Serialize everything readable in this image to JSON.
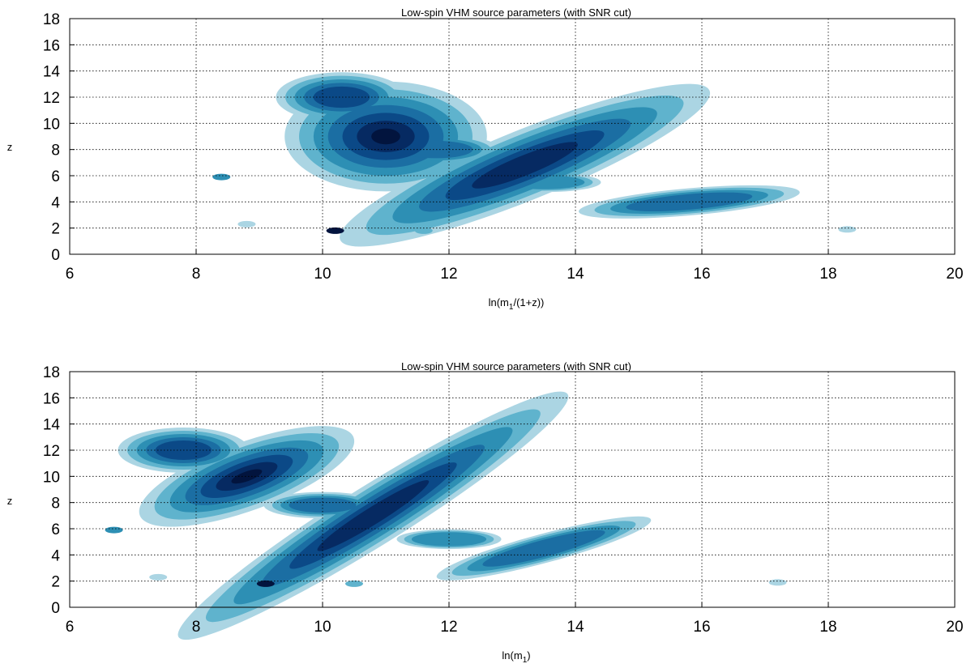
{
  "colors": {
    "levels": [
      "#abd5e3",
      "#5fb3cd",
      "#2d8fb4",
      "#1b6ea3",
      "#0b4987",
      "#062a62",
      "#02143e"
    ],
    "grid": "#000000",
    "background": "#ffffff"
  },
  "chart_data": [
    {
      "type": "heatmap",
      "title": "Low-spin VHM source parameters (with SNR cut)",
      "xlabel": "ln(m1/(1+z))",
      "ylabel": "z",
      "xlim": [
        6,
        20
      ],
      "ylim": [
        0,
        18
      ],
      "xticks": [
        "6",
        "8",
        "10",
        "12",
        "14",
        "16",
        "18",
        "20"
      ],
      "yticks": [
        "0",
        "2",
        "4",
        "6",
        "8",
        "10",
        "12",
        "14",
        "16",
        "18"
      ],
      "grid": true,
      "density_levels": 7,
      "blobs": [
        {
          "x": 13.2,
          "y": 6.8,
          "sx": 3.3,
          "sy": 2.8,
          "w": 0.9,
          "rot": -22
        },
        {
          "x": 11.0,
          "y": 9.0,
          "sx": 1.6,
          "sy": 4.2,
          "w": 1.0,
          "rot": 0
        },
        {
          "x": 10.3,
          "y": 12.0,
          "sx": 1.2,
          "sy": 2.2,
          "w": 0.7,
          "rot": 0
        },
        {
          "x": 15.8,
          "y": 4.0,
          "sx": 2.2,
          "sy": 1.3,
          "w": 0.55,
          "rot": -5
        },
        {
          "x": 11.8,
          "y": 8.0,
          "sx": 1.3,
          "sy": 1.5,
          "w": 0.5,
          "rot": 0
        },
        {
          "x": 13.5,
          "y": 5.5,
          "sx": 1.2,
          "sy": 1.0,
          "w": 0.45,
          "rot": 0
        }
      ],
      "specks": [
        {
          "x": 10.2,
          "y": 1.8,
          "level": 6
        },
        {
          "x": 8.4,
          "y": 5.9,
          "level": 2
        },
        {
          "x": 11.6,
          "y": 1.8,
          "level": 1
        },
        {
          "x": 18.3,
          "y": 1.9,
          "level": 0
        },
        {
          "x": 8.8,
          "y": 2.3,
          "level": 0
        }
      ]
    },
    {
      "type": "heatmap",
      "title": "Low-spin VHM source parameters (with SNR cut)",
      "xlabel": "ln(m1)",
      "ylabel": "z",
      "xlim": [
        6,
        20
      ],
      "ylim": [
        0,
        18
      ],
      "xticks": [
        "6",
        "8",
        "10",
        "12",
        "14",
        "16",
        "18",
        "20"
      ],
      "yticks": [
        "0",
        "2",
        "4",
        "6",
        "8",
        "10",
        "12",
        "14",
        "16",
        "18"
      ],
      "grid": true,
      "density_levels": 7,
      "blobs": [
        {
          "x": 10.8,
          "y": 7.0,
          "sx": 3.8,
          "sy": 2.4,
          "w": 0.9,
          "rot": -32
        },
        {
          "x": 8.8,
          "y": 10.0,
          "sx": 1.8,
          "sy": 2.6,
          "w": 1.0,
          "rot": -20
        },
        {
          "x": 7.8,
          "y": 12.0,
          "sx": 1.2,
          "sy": 2.0,
          "w": 0.7,
          "rot": 0
        },
        {
          "x": 13.5,
          "y": 4.5,
          "sx": 2.2,
          "sy": 1.4,
          "w": 0.55,
          "rot": -15
        },
        {
          "x": 10.0,
          "y": 7.8,
          "sx": 1.2,
          "sy": 1.3,
          "w": 0.5,
          "rot": 0
        },
        {
          "x": 12.0,
          "y": 5.2,
          "sx": 1.1,
          "sy": 1.0,
          "w": 0.45,
          "rot": 0
        }
      ],
      "specks": [
        {
          "x": 9.1,
          "y": 1.8,
          "level": 6
        },
        {
          "x": 6.7,
          "y": 5.9,
          "level": 2
        },
        {
          "x": 10.5,
          "y": 1.8,
          "level": 1
        },
        {
          "x": 17.2,
          "y": 1.9,
          "level": 0
        },
        {
          "x": 7.4,
          "y": 2.3,
          "level": 0
        }
      ]
    }
  ]
}
